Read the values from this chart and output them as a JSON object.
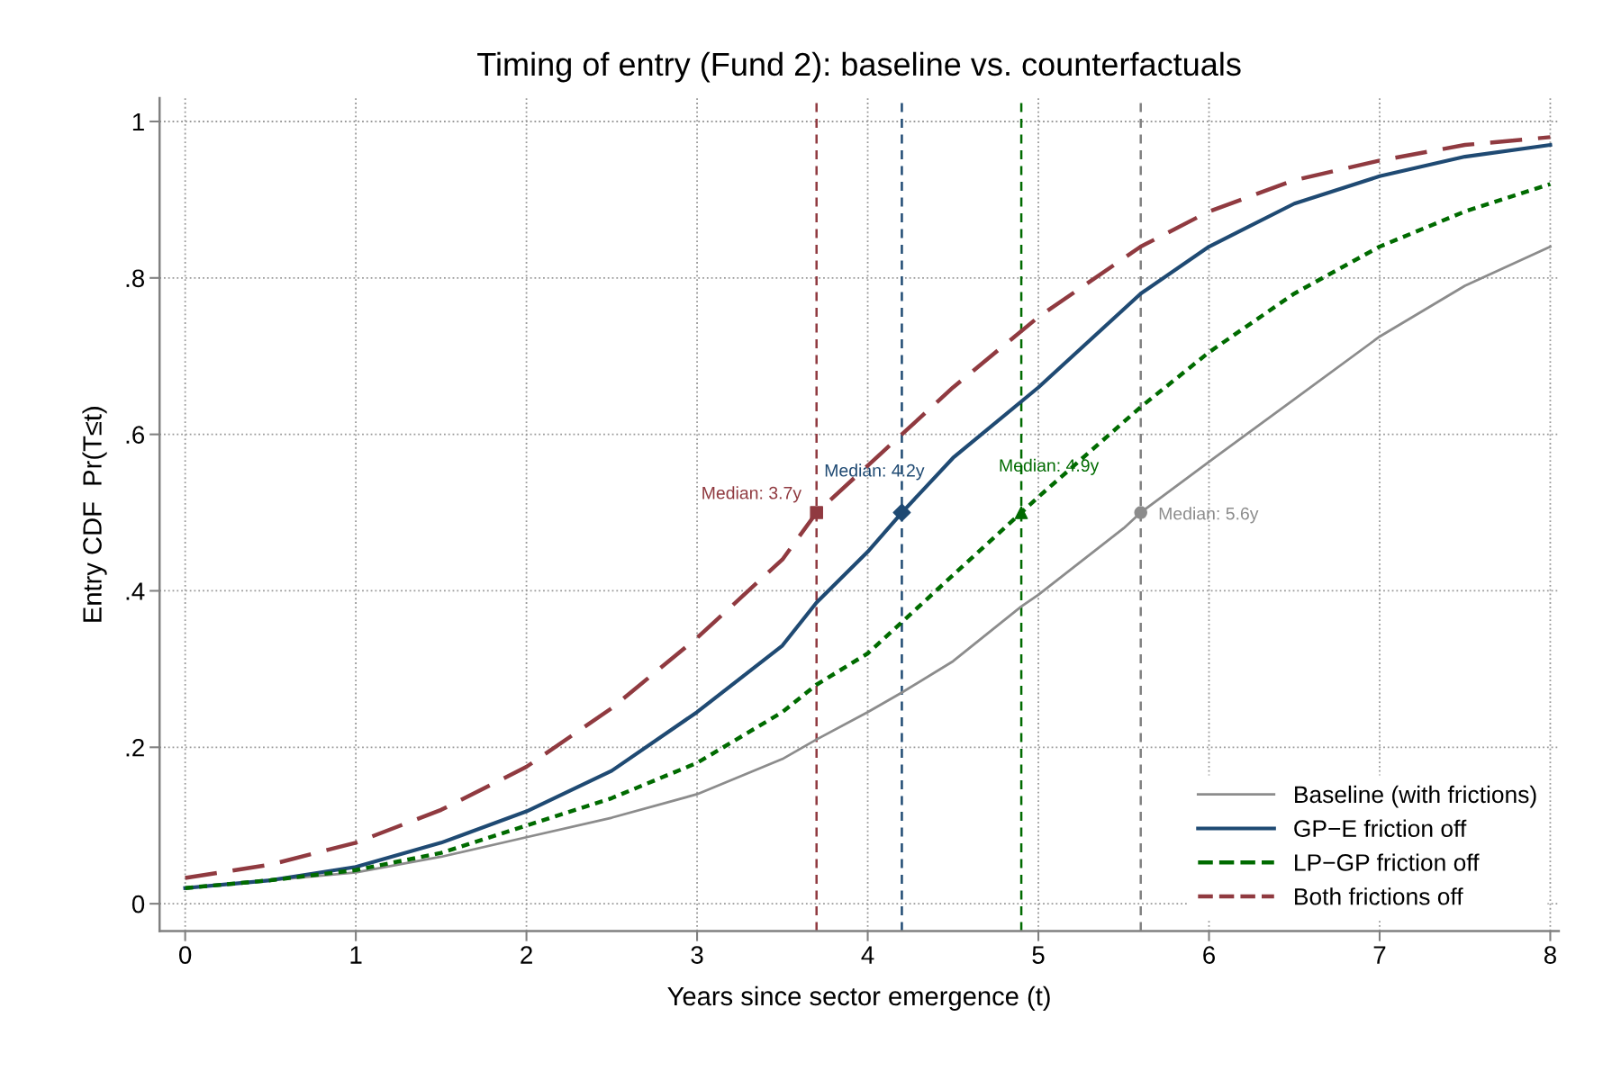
{
  "chart_data": {
    "type": "line",
    "title": "Timing of entry (Fund 2): baseline vs. counterfactuals",
    "xlabel": "Years since sector emergence (t)",
    "ylabel": "Entry CDF  Pr(T≤t)",
    "xlim": [
      -0.15,
      8.05
    ],
    "ylim": [
      -0.035,
      1.03
    ],
    "xticks": [
      0,
      1,
      2,
      3,
      4,
      5,
      6,
      7,
      8
    ],
    "yticks": [
      0,
      {
        "value": 0.2,
        "label": ".2"
      },
      {
        "value": 0.4,
        "label": ".4"
      },
      {
        "value": 0.6,
        "label": ".6"
      },
      {
        "value": 0.8,
        "label": ".8"
      },
      1
    ],
    "grid": true,
    "legend": "bottom right",
    "series": [
      {
        "name": "Baseline (with frictions)",
        "color": "#8c8c8c",
        "line_style": "solid",
        "x": [
          0,
          0.5,
          1,
          1.5,
          2,
          2.5,
          3,
          3.5,
          3.7,
          4,
          4.2,
          4.5,
          4.9,
          5,
          5.5,
          5.6,
          6,
          6.5,
          7,
          7.5,
          8
        ],
        "values": [
          0.02,
          0.03,
          0.04,
          0.06,
          0.085,
          0.11,
          0.14,
          0.185,
          0.21,
          0.245,
          0.27,
          0.31,
          0.38,
          0.395,
          0.48,
          0.5,
          0.565,
          0.645,
          0.725,
          0.79,
          0.84
        ]
      },
      {
        "name": "GP−E friction off",
        "color": "#1f4a73",
        "line_style": "solid",
        "x": [
          0,
          0.5,
          1,
          1.5,
          2,
          2.5,
          3,
          3.5,
          3.7,
          4,
          4.2,
          4.5,
          5,
          5.6,
          6,
          6.5,
          7,
          7.5,
          8
        ],
        "values": [
          0.02,
          0.03,
          0.047,
          0.078,
          0.118,
          0.17,
          0.245,
          0.33,
          0.385,
          0.45,
          0.5,
          0.57,
          0.66,
          0.78,
          0.84,
          0.895,
          0.93,
          0.955,
          0.97
        ]
      },
      {
        "name": "LP−GP friction off",
        "color": "#006b00",
        "line_style": "dotted",
        "x": [
          0,
          0.5,
          1,
          1.5,
          2,
          2.5,
          3,
          3.5,
          3.7,
          4,
          4.2,
          4.5,
          4.9,
          5,
          5.6,
          6,
          6.5,
          7,
          7.5,
          8
        ],
        "values": [
          0.02,
          0.03,
          0.043,
          0.065,
          0.1,
          0.135,
          0.18,
          0.245,
          0.28,
          0.32,
          0.36,
          0.42,
          0.5,
          0.52,
          0.635,
          0.705,
          0.78,
          0.84,
          0.885,
          0.92
        ]
      },
      {
        "name": "Both frictions off",
        "color": "#903a40",
        "line_style": "dashed",
        "x": [
          0,
          0.5,
          1,
          1.5,
          2,
          2.5,
          3,
          3.5,
          3.7,
          4,
          4.5,
          5,
          5.6,
          6,
          6.5,
          7,
          7.5,
          8
        ],
        "values": [
          0.033,
          0.05,
          0.078,
          0.12,
          0.175,
          0.25,
          0.34,
          0.44,
          0.5,
          0.56,
          0.66,
          0.75,
          0.84,
          0.885,
          0.925,
          0.95,
          0.97,
          0.98
        ]
      },
      {
        "type": "scatter",
        "color": "#8c8c8c",
        "marker": "circle",
        "x": [
          5.6
        ],
        "values": [
          0.5
        ]
      },
      {
        "type": "scatter",
        "color": "#1f4a73",
        "marker": "diamond",
        "x": [
          4.2
        ],
        "values": [
          0.5
        ]
      },
      {
        "type": "scatter",
        "color": "#006b00",
        "marker": "triangle",
        "x": [
          4.9
        ],
        "values": [
          0.5
        ]
      },
      {
        "type": "scatter",
        "color": "#903a40",
        "marker": "square",
        "x": [
          3.7
        ],
        "values": [
          0.5
        ]
      }
    ],
    "ref_lines": [
      {
        "axis": "x",
        "value": 3.7,
        "color": "#903a40",
        "line_style": "dashed"
      },
      {
        "axis": "x",
        "value": 4.2,
        "color": "#1f4a73",
        "line_style": "dashed"
      },
      {
        "axis": "x",
        "value": 4.9,
        "color": "#006b00",
        "line_style": "dashed"
      },
      {
        "axis": "x",
        "value": 5.6,
        "color": "#808080",
        "line_style": "dashed"
      }
    ],
    "annotations": [
      {
        "text": "Median: 3.7y",
        "x": 3.7,
        "y": 0.5
      },
      {
        "text": "Median: 4.2y",
        "x": 4.2,
        "y": 0.5
      },
      {
        "text": "Median: 4.9y",
        "x": 4.9,
        "y": 0.5
      },
      {
        "text": "Median: 5.6y",
        "x": 5.6,
        "y": 0.5
      }
    ]
  }
}
